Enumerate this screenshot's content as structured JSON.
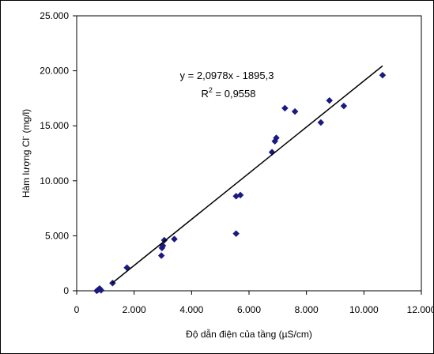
{
  "chart_data": {
    "type": "scatter",
    "xlabel": "Độ dẫn điện của tầng (µS/cm)",
    "ylabel_main": "Hàm lượng Cl",
    "ylabel_sup": "-",
    "ylabel_unit": " (mg/l)",
    "xlim": [
      0,
      12000
    ],
    "ylim": [
      0,
      25000
    ],
    "xticks": [
      0,
      2000,
      4000,
      6000,
      8000,
      10000,
      12000
    ],
    "xtick_labels": [
      "0",
      "2.000",
      "4.000",
      "6.000",
      "8.000",
      "10.000",
      "12.000"
    ],
    "yticks": [
      0,
      5000,
      10000,
      15000,
      20000,
      25000
    ],
    "ytick_labels": [
      "0",
      "5.000",
      "10.000",
      "15.000",
      "20.000",
      "25.000"
    ],
    "grid": false,
    "marker_color": "#1a1a80",
    "series": [
      {
        "points": [
          [
            700,
            0
          ],
          [
            750,
            100
          ],
          [
            800,
            200
          ],
          [
            850,
            50
          ],
          [
            1250,
            700
          ],
          [
            1750,
            2100
          ],
          [
            2950,
            3200
          ],
          [
            2970,
            3900
          ],
          [
            3000,
            4100
          ],
          [
            3050,
            4600
          ],
          [
            3400,
            4700
          ],
          [
            5550,
            5200
          ],
          [
            5550,
            8600
          ],
          [
            5700,
            8700
          ],
          [
            6800,
            12600
          ],
          [
            6900,
            13600
          ],
          [
            6950,
            13900
          ],
          [
            7250,
            16600
          ],
          [
            7600,
            16300
          ],
          [
            8500,
            15300
          ],
          [
            8800,
            17300
          ],
          [
            9300,
            16800
          ],
          [
            10650,
            19600
          ]
        ]
      }
    ],
    "trendline": {
      "slope": 2.0978,
      "intercept": -1895.3,
      "x_range": [
        1250,
        10650
      ],
      "equation": "y = 2,0978x - 1895,3",
      "r2_label": "R",
      "r2_sup": "2",
      "r2_value": " = 0,9558"
    }
  }
}
